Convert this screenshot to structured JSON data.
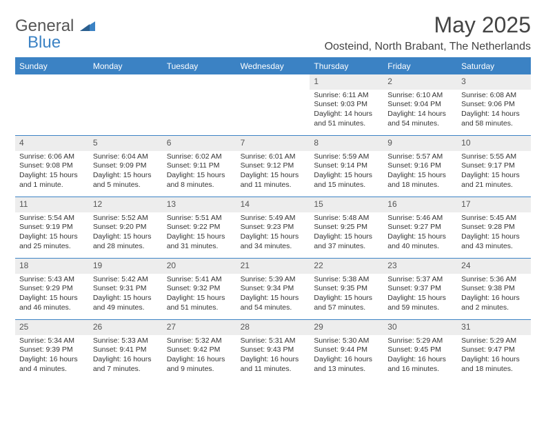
{
  "logo": {
    "text1": "General",
    "text2": "Blue"
  },
  "title": "May 2025",
  "location": "Oosteind, North Brabant, The Netherlands",
  "colors": {
    "accent": "#3b82c4",
    "daynum_bg": "#ededed",
    "text": "#333333",
    "logo_gray": "#555555"
  },
  "day_names": [
    "Sunday",
    "Monday",
    "Tuesday",
    "Wednesday",
    "Thursday",
    "Friday",
    "Saturday"
  ],
  "weeks": [
    [
      null,
      null,
      null,
      null,
      {
        "n": "1",
        "sr": "6:11 AM",
        "ss": "9:03 PM",
        "dl": "14 hours and 51 minutes."
      },
      {
        "n": "2",
        "sr": "6:10 AM",
        "ss": "9:04 PM",
        "dl": "14 hours and 54 minutes."
      },
      {
        "n": "3",
        "sr": "6:08 AM",
        "ss": "9:06 PM",
        "dl": "14 hours and 58 minutes."
      }
    ],
    [
      {
        "n": "4",
        "sr": "6:06 AM",
        "ss": "9:08 PM",
        "dl": "15 hours and 1 minute."
      },
      {
        "n": "5",
        "sr": "6:04 AM",
        "ss": "9:09 PM",
        "dl": "15 hours and 5 minutes."
      },
      {
        "n": "6",
        "sr": "6:02 AM",
        "ss": "9:11 PM",
        "dl": "15 hours and 8 minutes."
      },
      {
        "n": "7",
        "sr": "6:01 AM",
        "ss": "9:12 PM",
        "dl": "15 hours and 11 minutes."
      },
      {
        "n": "8",
        "sr": "5:59 AM",
        "ss": "9:14 PM",
        "dl": "15 hours and 15 minutes."
      },
      {
        "n": "9",
        "sr": "5:57 AM",
        "ss": "9:16 PM",
        "dl": "15 hours and 18 minutes."
      },
      {
        "n": "10",
        "sr": "5:55 AM",
        "ss": "9:17 PM",
        "dl": "15 hours and 21 minutes."
      }
    ],
    [
      {
        "n": "11",
        "sr": "5:54 AM",
        "ss": "9:19 PM",
        "dl": "15 hours and 25 minutes."
      },
      {
        "n": "12",
        "sr": "5:52 AM",
        "ss": "9:20 PM",
        "dl": "15 hours and 28 minutes."
      },
      {
        "n": "13",
        "sr": "5:51 AM",
        "ss": "9:22 PM",
        "dl": "15 hours and 31 minutes."
      },
      {
        "n": "14",
        "sr": "5:49 AM",
        "ss": "9:23 PM",
        "dl": "15 hours and 34 minutes."
      },
      {
        "n": "15",
        "sr": "5:48 AM",
        "ss": "9:25 PM",
        "dl": "15 hours and 37 minutes."
      },
      {
        "n": "16",
        "sr": "5:46 AM",
        "ss": "9:27 PM",
        "dl": "15 hours and 40 minutes."
      },
      {
        "n": "17",
        "sr": "5:45 AM",
        "ss": "9:28 PM",
        "dl": "15 hours and 43 minutes."
      }
    ],
    [
      {
        "n": "18",
        "sr": "5:43 AM",
        "ss": "9:29 PM",
        "dl": "15 hours and 46 minutes."
      },
      {
        "n": "19",
        "sr": "5:42 AM",
        "ss": "9:31 PM",
        "dl": "15 hours and 49 minutes."
      },
      {
        "n": "20",
        "sr": "5:41 AM",
        "ss": "9:32 PM",
        "dl": "15 hours and 51 minutes."
      },
      {
        "n": "21",
        "sr": "5:39 AM",
        "ss": "9:34 PM",
        "dl": "15 hours and 54 minutes."
      },
      {
        "n": "22",
        "sr": "5:38 AM",
        "ss": "9:35 PM",
        "dl": "15 hours and 57 minutes."
      },
      {
        "n": "23",
        "sr": "5:37 AM",
        "ss": "9:37 PM",
        "dl": "15 hours and 59 minutes."
      },
      {
        "n": "24",
        "sr": "5:36 AM",
        "ss": "9:38 PM",
        "dl": "16 hours and 2 minutes."
      }
    ],
    [
      {
        "n": "25",
        "sr": "5:34 AM",
        "ss": "9:39 PM",
        "dl": "16 hours and 4 minutes."
      },
      {
        "n": "26",
        "sr": "5:33 AM",
        "ss": "9:41 PM",
        "dl": "16 hours and 7 minutes."
      },
      {
        "n": "27",
        "sr": "5:32 AM",
        "ss": "9:42 PM",
        "dl": "16 hours and 9 minutes."
      },
      {
        "n": "28",
        "sr": "5:31 AM",
        "ss": "9:43 PM",
        "dl": "16 hours and 11 minutes."
      },
      {
        "n": "29",
        "sr": "5:30 AM",
        "ss": "9:44 PM",
        "dl": "16 hours and 13 minutes."
      },
      {
        "n": "30",
        "sr": "5:29 AM",
        "ss": "9:45 PM",
        "dl": "16 hours and 16 minutes."
      },
      {
        "n": "31",
        "sr": "5:29 AM",
        "ss": "9:47 PM",
        "dl": "16 hours and 18 minutes."
      }
    ]
  ],
  "labels": {
    "sunrise": "Sunrise:",
    "sunset": "Sunset:",
    "daylight": "Daylight:"
  }
}
